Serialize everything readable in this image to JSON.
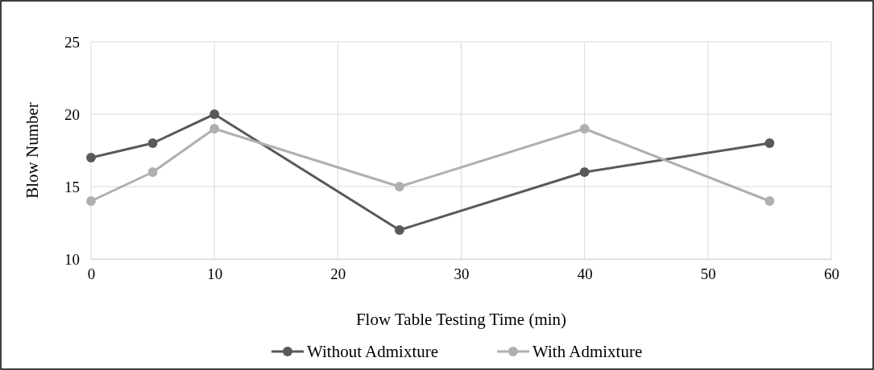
{
  "chart_data": {
    "type": "line",
    "xlabel": "Flow Table Testing Time (min)",
    "ylabel": "Blow Number",
    "x": [
      0,
      5,
      10,
      25,
      40,
      55
    ],
    "series": [
      {
        "name": "Without Admixture",
        "color": "#595959",
        "values": [
          17,
          18,
          20,
          12,
          16,
          18
        ]
      },
      {
        "name": "With Admixture",
        "color": "#afafaf",
        "values": [
          14,
          16,
          19,
          15,
          19,
          14
        ]
      }
    ],
    "xlim": [
      0,
      60
    ],
    "xticks": [
      0,
      10,
      20,
      30,
      40,
      50,
      60
    ],
    "ylim": [
      10,
      25
    ],
    "yticks": [
      10,
      15,
      20,
      25
    ],
    "grid": true,
    "legend": "bottom",
    "marker": "circle",
    "line_style": "solid"
  }
}
